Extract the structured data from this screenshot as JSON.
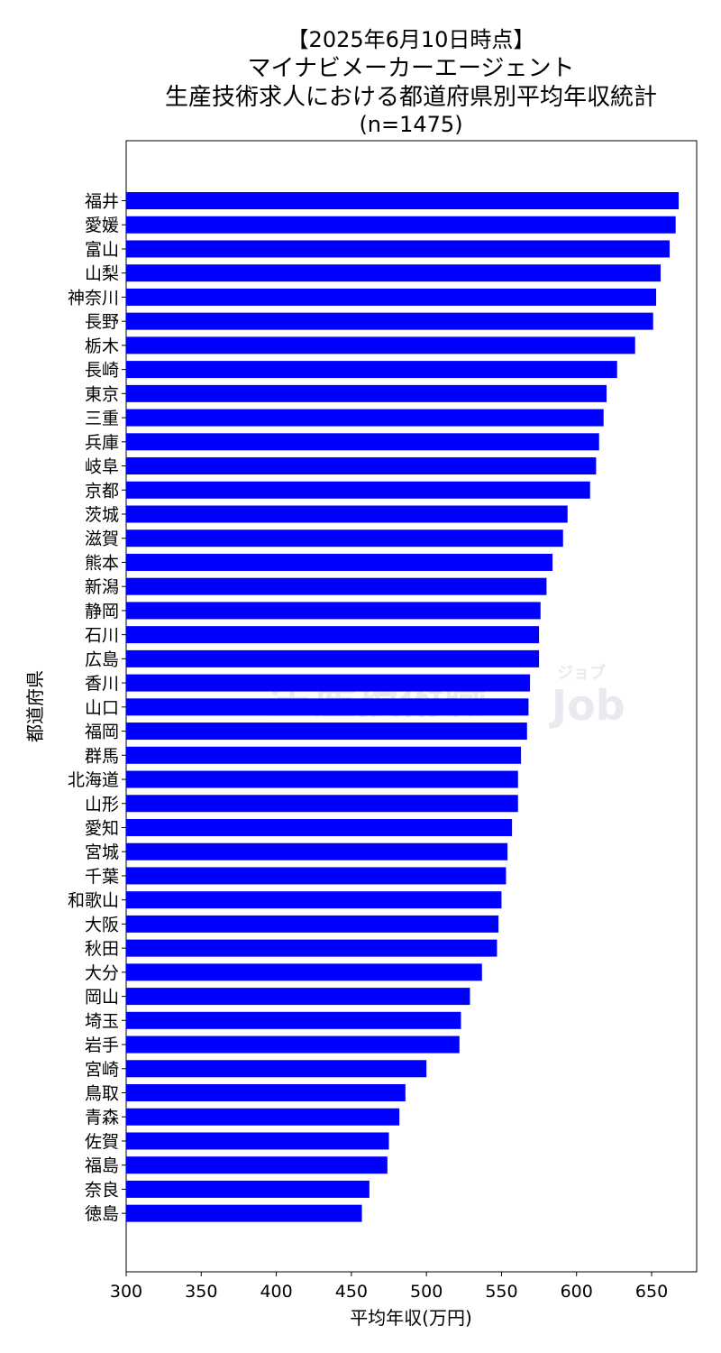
{
  "chart_data": {
    "type": "bar",
    "orientation": "horizontal",
    "title": [
      "【2025年6月10日時点】",
      "マイナビメーカーエージェント",
      "生産技術求人における都道府県別平均年収統計",
      "(n=1475)"
    ],
    "xlabel": "平均年収(万円)",
    "ylabel": "都道府県",
    "xlim": [
      300,
      680
    ],
    "xticks": [
      300,
      350,
      400,
      450,
      500,
      550,
      600,
      650
    ],
    "grid": false,
    "bar_color": "#0000ff",
    "categories": [
      "福井",
      "愛媛",
      "富山",
      "山梨",
      "神奈川",
      "長野",
      "栃木",
      "長崎",
      "東京",
      "三重",
      "兵庫",
      "岐阜",
      "京都",
      "茨城",
      "滋賀",
      "熊本",
      "新潟",
      "静岡",
      "石川",
      "広島",
      "香川",
      "山口",
      "福岡",
      "群馬",
      "北海道",
      "山形",
      "愛知",
      "宮城",
      "千葉",
      "和歌山",
      "大阪",
      "秋田",
      "大分",
      "岡山",
      "埼玉",
      "岩手",
      "宮崎",
      "鳥取",
      "青森",
      "佐賀",
      "福島",
      "奈良",
      "徳島"
    ],
    "values": [
      668,
      666,
      662,
      656,
      653,
      651,
      639,
      627,
      620,
      618,
      615,
      613,
      609,
      594,
      591,
      584,
      580,
      576,
      575,
      575,
      569,
      568,
      567,
      563,
      561,
      561,
      557,
      554,
      553,
      550,
      548,
      547,
      537,
      529,
      523,
      522,
      500,
      486,
      482,
      475,
      474,
      462,
      457
    ]
  },
  "watermark": {
    "text": "生産技術職",
    "tag": "ジョブ",
    "brand": "Job"
  }
}
